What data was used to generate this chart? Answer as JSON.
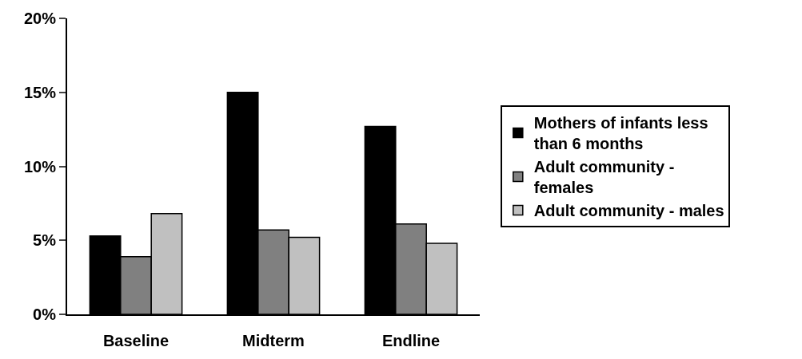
{
  "chart_data": {
    "type": "bar",
    "categories": [
      "Baseline",
      "Midterm",
      "Endline"
    ],
    "series": [
      {
        "name": "Mothers of infants less than 6 months",
        "color": "#000000",
        "values": [
          5.3,
          15.0,
          12.7
        ]
      },
      {
        "name": "Adult community - females",
        "color": "#808080",
        "values": [
          3.9,
          5.7,
          6.1
        ]
      },
      {
        "name": "Adult community - males",
        "color": "#c0c0c0",
        "values": [
          6.8,
          5.2,
          4.8
        ]
      }
    ],
    "ylim": [
      0,
      20
    ],
    "yticks": [
      {
        "value": 0,
        "label": "0%"
      },
      {
        "value": 5,
        "label": "5%"
      },
      {
        "value": 10,
        "label": "10%"
      },
      {
        "value": 15,
        "label": "15%"
      },
      {
        "value": 20,
        "label": "20%"
      }
    ],
    "legend": "right"
  }
}
